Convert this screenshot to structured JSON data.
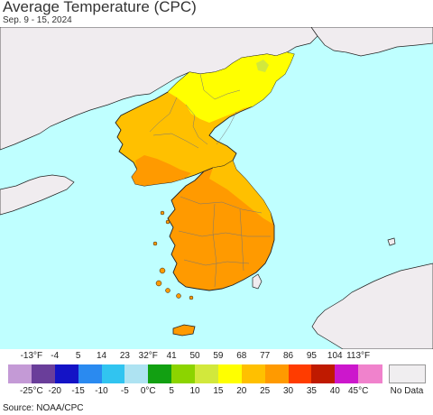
{
  "title": "Average Temperature (CPC)",
  "subtitle": "Sep. 9 - 15, 2024",
  "source": "Source: NOAA/CPC",
  "colors": {
    "sea": "#bfffff",
    "foreign_land": "#f0ecef",
    "border_line": "#222222",
    "province_line": "#777777",
    "bin_15_20": "#ffff00",
    "bin_20_25": "#ffc000",
    "bin_25_30": "#ff9a00",
    "bin_10_15": "#d2e83c"
  },
  "legend": {
    "fahrenheit_labels": [
      "-13°F",
      "-4",
      "5",
      "14",
      "23",
      "32°F",
      "41",
      "50",
      "59",
      "68",
      "77",
      "86",
      "95",
      "104",
      "113°F"
    ],
    "celsius_labels": [
      "-25°C",
      "-20",
      "-15",
      "-10",
      "-5",
      "0°C",
      "5",
      "10",
      "15",
      "20",
      "25",
      "30",
      "35",
      "40",
      "45°C"
    ],
    "bins": [
      {
        "color": "#c49ad6"
      },
      {
        "color": "#6a3e9a"
      },
      {
        "color": "#1413c6"
      },
      {
        "color": "#2a8af0"
      },
      {
        "color": "#31c4f0"
      },
      {
        "color": "#aee3f2"
      },
      {
        "color": "#12a012"
      },
      {
        "color": "#8cd400"
      },
      {
        "color": "#d2e83c"
      },
      {
        "color": "#ffff00"
      },
      {
        "color": "#ffc000"
      },
      {
        "color": "#ff9a00"
      },
      {
        "color": "#ff3c00"
      },
      {
        "color": "#bf1a00"
      },
      {
        "color": "#cc17cc"
      },
      {
        "color": "#f082cc"
      }
    ],
    "no_data_label": "No Data",
    "no_data_color": "#f0eef0"
  }
}
